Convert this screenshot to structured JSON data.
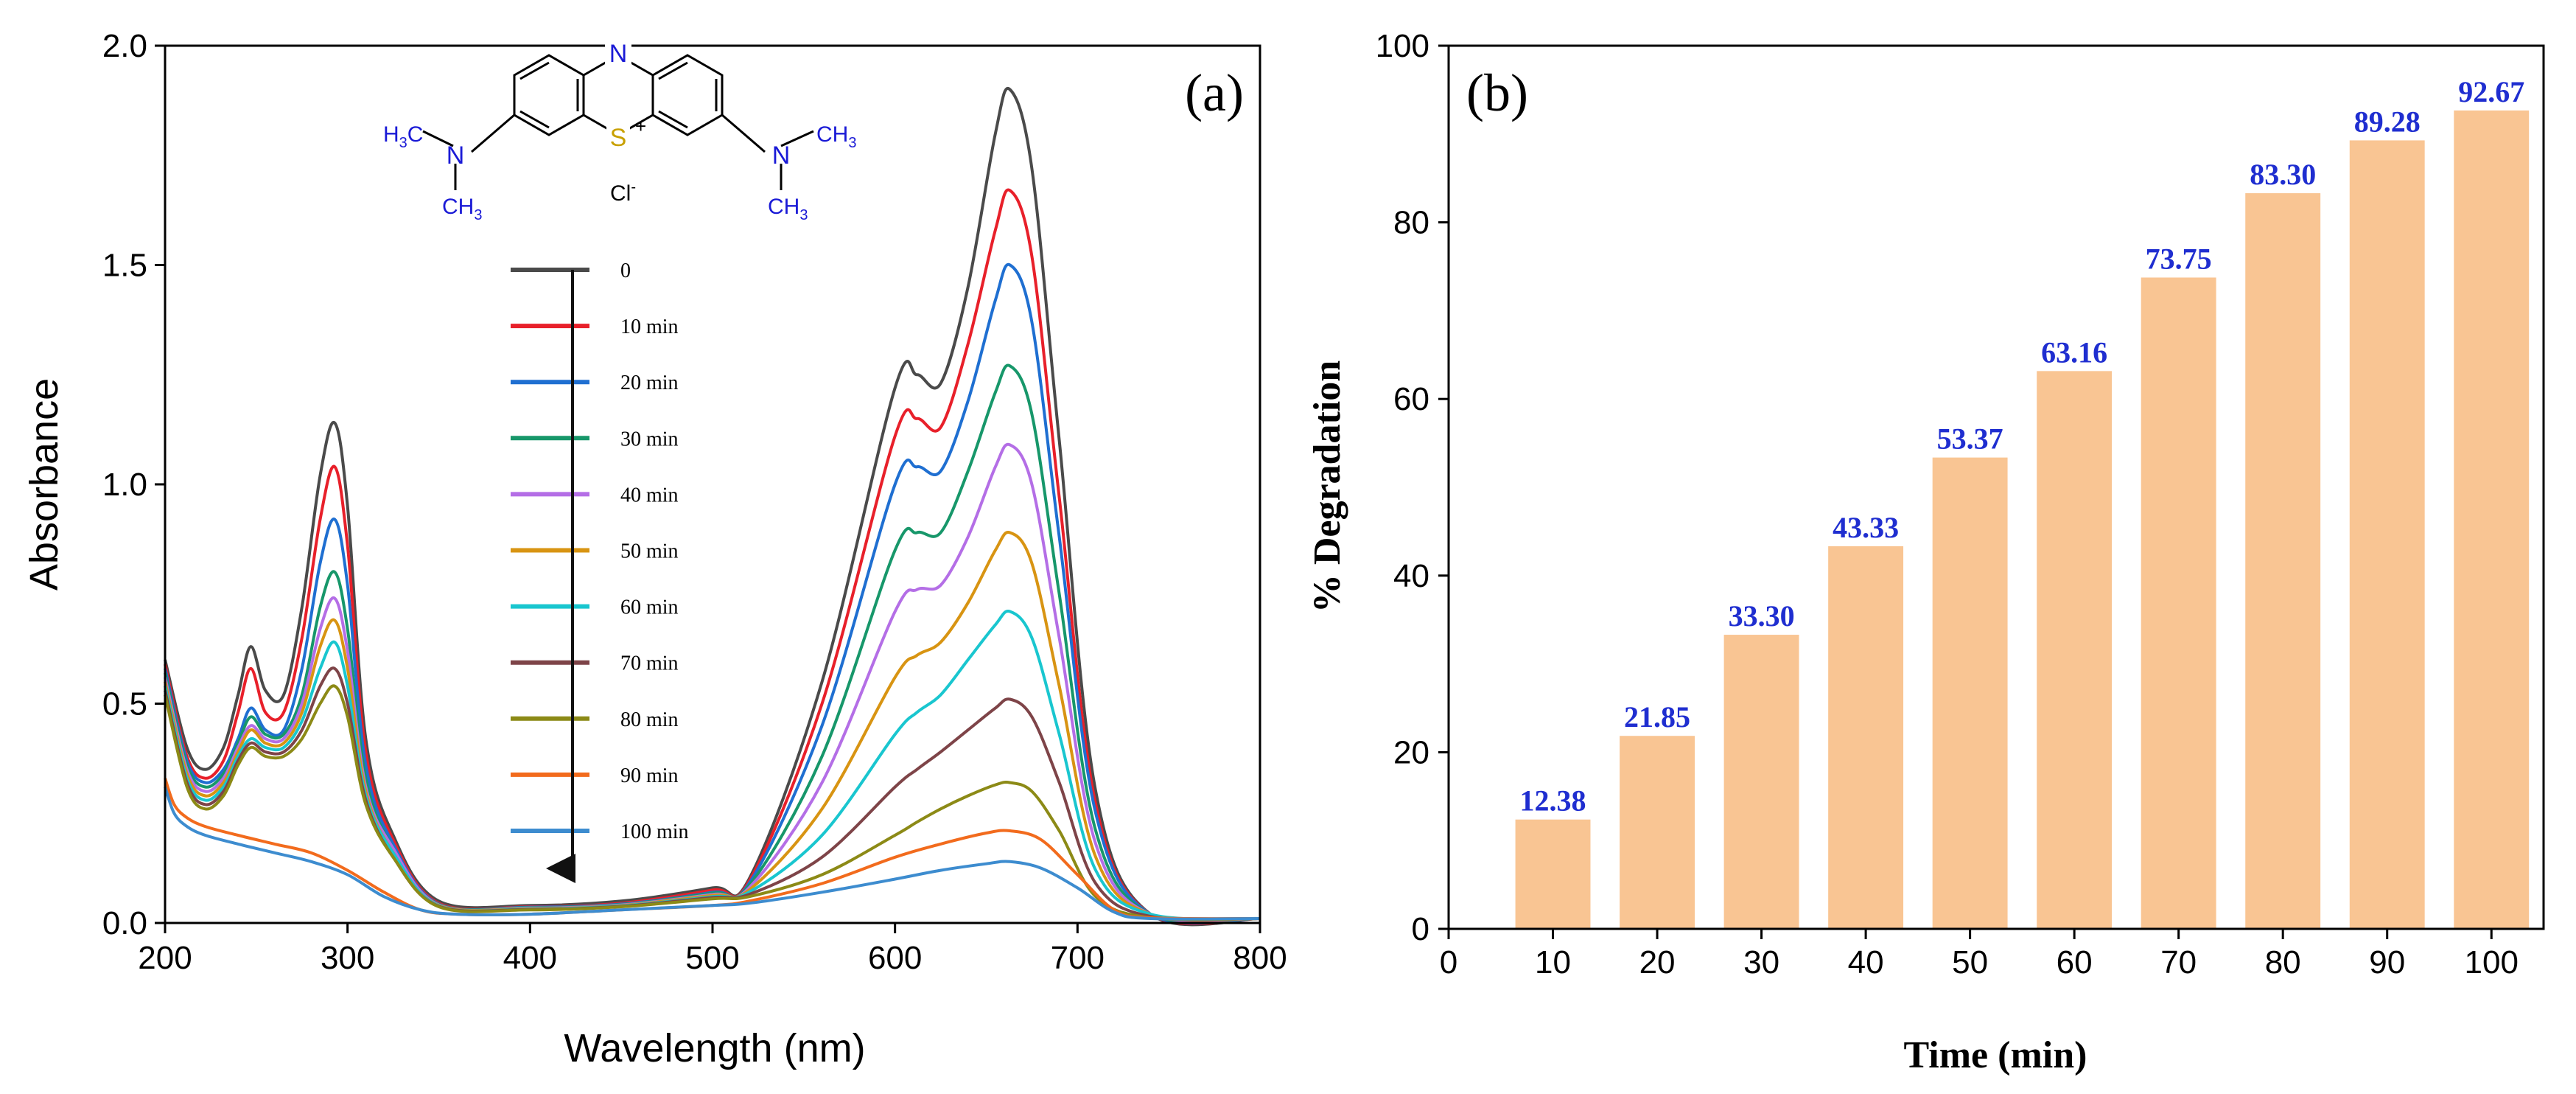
{
  "chart_data": [
    {
      "panel": "(a)",
      "type": "line",
      "xlabel": "Wavelength (nm)",
      "ylabel": "Absorbance",
      "xlim": [
        200,
        800
      ],
      "ylim": [
        0,
        2.0
      ],
      "xticks": [
        "200",
        "300",
        "400",
        "500",
        "600",
        "700",
        "800"
      ],
      "yticks": [
        "0.0",
        "0.5",
        "1.0",
        "1.5",
        "2.0"
      ],
      "molecule": {
        "n_top": "N",
        "s_plus": "S",
        "plus": "+",
        "left_h3c": "H",
        "left_h3c_sub": "3",
        "left_h3c_c": "C",
        "left_n": "N",
        "left_ch3": "CH",
        "left_ch3_sub": "3",
        "right_n": "N",
        "right_ch3_top": "CH",
        "right_ch3_top_sub": "3",
        "right_ch3_bottom": "CH",
        "right_ch3_bottom_sub": "3",
        "counter_ion": "Cl",
        "counter_ion_sign": "-"
      },
      "series": [
        {
          "name": "0",
          "color": "#4a4a4a",
          "x": [
            200,
            212,
            222,
            232,
            240,
            247,
            255,
            265,
            275,
            285,
            293,
            300,
            310,
            325,
            350,
            400,
            450,
            500,
            520,
            560,
            600,
            612,
            625,
            640,
            655,
            663,
            675,
            690,
            710,
            740,
            800
          ],
          "y": [
            0.6,
            0.4,
            0.35,
            0.4,
            0.52,
            0.63,
            0.53,
            0.52,
            0.72,
            1.02,
            1.14,
            0.95,
            0.42,
            0.2,
            0.05,
            0.04,
            0.05,
            0.08,
            0.1,
            0.55,
            1.22,
            1.25,
            1.23,
            1.45,
            1.8,
            1.9,
            1.72,
            1.1,
            0.3,
            0.02,
            0.01
          ]
        },
        {
          "name": "10 min",
          "color": "#e8202a",
          "x": [
            200,
            212,
            222,
            232,
            240,
            247,
            255,
            265,
            275,
            285,
            293,
            300,
            310,
            325,
            350,
            400,
            450,
            500,
            520,
            560,
            600,
            612,
            625,
            640,
            655,
            663,
            675,
            690,
            710,
            740,
            800
          ],
          "y": [
            0.59,
            0.38,
            0.33,
            0.37,
            0.48,
            0.58,
            0.48,
            0.48,
            0.65,
            0.92,
            1.04,
            0.86,
            0.39,
            0.19,
            0.045,
            0.037,
            0.045,
            0.075,
            0.095,
            0.5,
            1.11,
            1.15,
            1.13,
            1.32,
            1.58,
            1.67,
            1.52,
            0.97,
            0.27,
            0.02,
            0.01
          ]
        },
        {
          "name": "20 min",
          "color": "#1f6fd1",
          "x": [
            200,
            212,
            222,
            232,
            240,
            247,
            255,
            265,
            275,
            285,
            293,
            300,
            310,
            325,
            350,
            400,
            450,
            500,
            520,
            560,
            600,
            612,
            625,
            640,
            655,
            663,
            675,
            690,
            710,
            740,
            800
          ],
          "y": [
            0.58,
            0.37,
            0.32,
            0.35,
            0.42,
            0.49,
            0.44,
            0.44,
            0.58,
            0.82,
            0.92,
            0.77,
            0.36,
            0.18,
            0.043,
            0.036,
            0.043,
            0.07,
            0.09,
            0.45,
            1.0,
            1.04,
            1.03,
            1.19,
            1.42,
            1.5,
            1.37,
            0.88,
            0.25,
            0.02,
            0.01
          ]
        },
        {
          "name": "30 min",
          "color": "#17976a",
          "x": [
            200,
            212,
            222,
            232,
            240,
            247,
            255,
            265,
            275,
            285,
            293,
            300,
            310,
            325,
            350,
            400,
            450,
            500,
            520,
            560,
            600,
            612,
            625,
            640,
            655,
            663,
            675,
            690,
            710,
            740,
            800
          ],
          "y": [
            0.57,
            0.36,
            0.31,
            0.34,
            0.41,
            0.47,
            0.43,
            0.43,
            0.52,
            0.72,
            0.8,
            0.67,
            0.33,
            0.17,
            0.042,
            0.035,
            0.042,
            0.068,
            0.085,
            0.38,
            0.85,
            0.89,
            0.89,
            1.03,
            1.21,
            1.27,
            1.16,
            0.75,
            0.21,
            0.02,
            0.01
          ]
        },
        {
          "name": "40 min",
          "color": "#b46ee6",
          "x": [
            200,
            212,
            222,
            232,
            240,
            247,
            255,
            265,
            275,
            285,
            293,
            300,
            310,
            325,
            350,
            400,
            450,
            500,
            520,
            560,
            600,
            612,
            625,
            640,
            655,
            663,
            675,
            690,
            710,
            740,
            800
          ],
          "y": [
            0.56,
            0.35,
            0.3,
            0.33,
            0.4,
            0.45,
            0.42,
            0.42,
            0.5,
            0.67,
            0.74,
            0.62,
            0.31,
            0.17,
            0.041,
            0.034,
            0.041,
            0.065,
            0.08,
            0.32,
            0.71,
            0.76,
            0.77,
            0.88,
            1.04,
            1.09,
            1.0,
            0.65,
            0.18,
            0.02,
            0.01
          ]
        },
        {
          "name": "50 min",
          "color": "#d89412",
          "x": [
            200,
            212,
            222,
            232,
            240,
            247,
            255,
            265,
            275,
            285,
            293,
            300,
            310,
            325,
            350,
            400,
            450,
            500,
            520,
            560,
            600,
            612,
            625,
            640,
            655,
            663,
            675,
            690,
            710,
            740,
            800
          ],
          "y": [
            0.55,
            0.34,
            0.29,
            0.32,
            0.39,
            0.44,
            0.41,
            0.41,
            0.48,
            0.63,
            0.69,
            0.58,
            0.3,
            0.16,
            0.04,
            0.033,
            0.04,
            0.063,
            0.075,
            0.26,
            0.56,
            0.61,
            0.64,
            0.73,
            0.85,
            0.89,
            0.82,
            0.54,
            0.15,
            0.02,
            0.01
          ]
        },
        {
          "name": "60 min",
          "color": "#19c6cf",
          "x": [
            200,
            212,
            222,
            232,
            240,
            247,
            255,
            265,
            275,
            285,
            293,
            300,
            310,
            325,
            350,
            400,
            450,
            500,
            520,
            560,
            600,
            612,
            625,
            640,
            655,
            663,
            675,
            690,
            710,
            740,
            800
          ],
          "y": [
            0.54,
            0.33,
            0.28,
            0.31,
            0.38,
            0.42,
            0.4,
            0.4,
            0.46,
            0.58,
            0.64,
            0.54,
            0.29,
            0.16,
            0.039,
            0.032,
            0.039,
            0.06,
            0.07,
            0.2,
            0.43,
            0.48,
            0.52,
            0.6,
            0.68,
            0.71,
            0.65,
            0.43,
            0.12,
            0.02,
            0.01
          ]
        },
        {
          "name": "70 min",
          "color": "#7e4448",
          "x": [
            200,
            212,
            222,
            232,
            240,
            247,
            255,
            265,
            275,
            285,
            293,
            300,
            310,
            325,
            350,
            400,
            450,
            500,
            520,
            560,
            600,
            612,
            625,
            640,
            655,
            663,
            675,
            690,
            710,
            740,
            800
          ],
          "y": [
            0.53,
            0.32,
            0.27,
            0.3,
            0.37,
            0.41,
            0.39,
            0.39,
            0.44,
            0.54,
            0.58,
            0.5,
            0.28,
            0.15,
            0.038,
            0.031,
            0.038,
            0.058,
            0.065,
            0.15,
            0.31,
            0.35,
            0.39,
            0.44,
            0.49,
            0.51,
            0.47,
            0.32,
            0.09,
            0.015,
            0.01
          ]
        },
        {
          "name": "80 min",
          "color": "#8c8a16",
          "x": [
            200,
            212,
            222,
            232,
            240,
            247,
            255,
            265,
            275,
            285,
            293,
            300,
            310,
            325,
            350,
            400,
            450,
            500,
            520,
            560,
            600,
            612,
            625,
            640,
            655,
            663,
            675,
            690,
            710,
            740,
            800
          ],
          "y": [
            0.52,
            0.31,
            0.26,
            0.29,
            0.36,
            0.4,
            0.38,
            0.38,
            0.42,
            0.5,
            0.54,
            0.47,
            0.27,
            0.15,
            0.037,
            0.03,
            0.037,
            0.055,
            0.06,
            0.11,
            0.2,
            0.23,
            0.26,
            0.29,
            0.315,
            0.32,
            0.3,
            0.21,
            0.06,
            0.012,
            0.01
          ]
        },
        {
          "name": "90 min",
          "color": "#f26b1d",
          "x": [
            200,
            205,
            212,
            222,
            240,
            260,
            280,
            300,
            320,
            340,
            360,
            400,
            450,
            500,
            520,
            560,
            600,
            625,
            650,
            663,
            680,
            700,
            720,
            740,
            800
          ],
          "y": [
            0.33,
            0.27,
            0.24,
            0.22,
            0.2,
            0.18,
            0.16,
            0.12,
            0.07,
            0.03,
            0.02,
            0.02,
            0.03,
            0.04,
            0.05,
            0.09,
            0.15,
            0.18,
            0.205,
            0.21,
            0.19,
            0.11,
            0.03,
            0.012,
            0.01
          ]
        },
        {
          "name": "100 min",
          "color": "#3d8ccf",
          "x": [
            200,
            205,
            212,
            222,
            240,
            260,
            280,
            300,
            320,
            340,
            360,
            400,
            450,
            500,
            520,
            560,
            600,
            625,
            650,
            663,
            680,
            700,
            720,
            740,
            800
          ],
          "y": [
            0.31,
            0.25,
            0.22,
            0.2,
            0.18,
            0.16,
            0.14,
            0.11,
            0.06,
            0.03,
            0.02,
            0.02,
            0.03,
            0.04,
            0.045,
            0.07,
            0.1,
            0.12,
            0.135,
            0.14,
            0.125,
            0.08,
            0.025,
            0.01,
            0.01
          ]
        }
      ]
    },
    {
      "panel": "(b)",
      "type": "bar",
      "xlabel": "Time (min)",
      "ylabel": "% Degradation",
      "xlim": [
        0,
        105
      ],
      "ylim": [
        0,
        100
      ],
      "xticks": [
        "0",
        "10",
        "20",
        "30",
        "40",
        "50",
        "60",
        "70",
        "80",
        "90",
        "100"
      ],
      "yticks": [
        "0",
        "20",
        "40",
        "60",
        "80",
        "100"
      ],
      "categories": [
        "10",
        "20",
        "30",
        "40",
        "50",
        "60",
        "70",
        "80",
        "90",
        "100"
      ],
      "values": [
        12.38,
        21.85,
        33.3,
        43.33,
        53.37,
        63.16,
        73.75,
        83.3,
        89.28,
        92.67
      ],
      "labels": [
        "12.38",
        "21.85",
        "33.30",
        "43.33",
        "53.37",
        "63.16",
        "73.75",
        "83.30",
        "89.28",
        "92.67"
      ],
      "bar_color": "#f9c593",
      "label_color": "#1f2ed0"
    }
  ]
}
